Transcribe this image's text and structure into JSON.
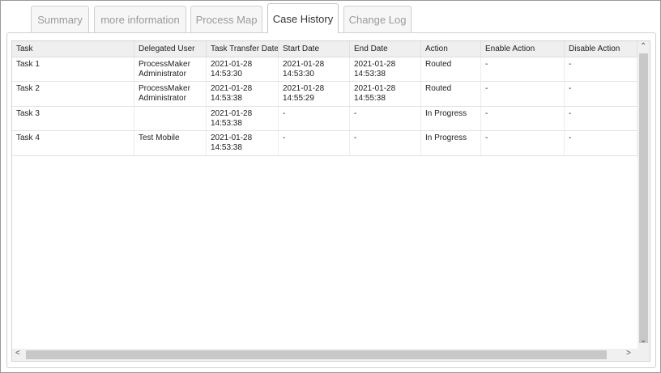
{
  "tabs": [
    "Summary",
    "more information",
    "Process Map",
    "Case History",
    "Change Log"
  ],
  "active_tab": 3,
  "table": {
    "columns": [
      "Task",
      "Delegated User",
      "Task Transfer Date",
      "Start Date",
      "End Date",
      "Action",
      "Enable Action",
      "Disable Action"
    ],
    "rows": [
      [
        "Task 1",
        [
          "ProcessMaker",
          "Administrator"
        ],
        [
          "2021-01-28",
          "14:53:30"
        ],
        [
          "2021-01-28",
          "14:53:30"
        ],
        [
          "2021-01-28",
          "14:53:38"
        ],
        "Routed",
        "-",
        "-"
      ],
      [
        "Task 2",
        [
          "ProcessMaker",
          "Administrator"
        ],
        [
          "2021-01-28",
          "14:53:38"
        ],
        [
          "2021-01-28",
          "14:55:29"
        ],
        [
          "2021-01-28",
          "14:55:38"
        ],
        "Routed",
        "-",
        "-"
      ],
      [
        "Task 3",
        null,
        [
          "2021-01-28",
          "14:53:38"
        ],
        "-",
        "-",
        "In Progress",
        "-",
        "-"
      ],
      [
        "Task 4",
        "Test Mobile",
        [
          "2021-01-28",
          "14:53:38"
        ],
        "-",
        "-",
        "In Progress",
        "-",
        "-"
      ]
    ]
  }
}
